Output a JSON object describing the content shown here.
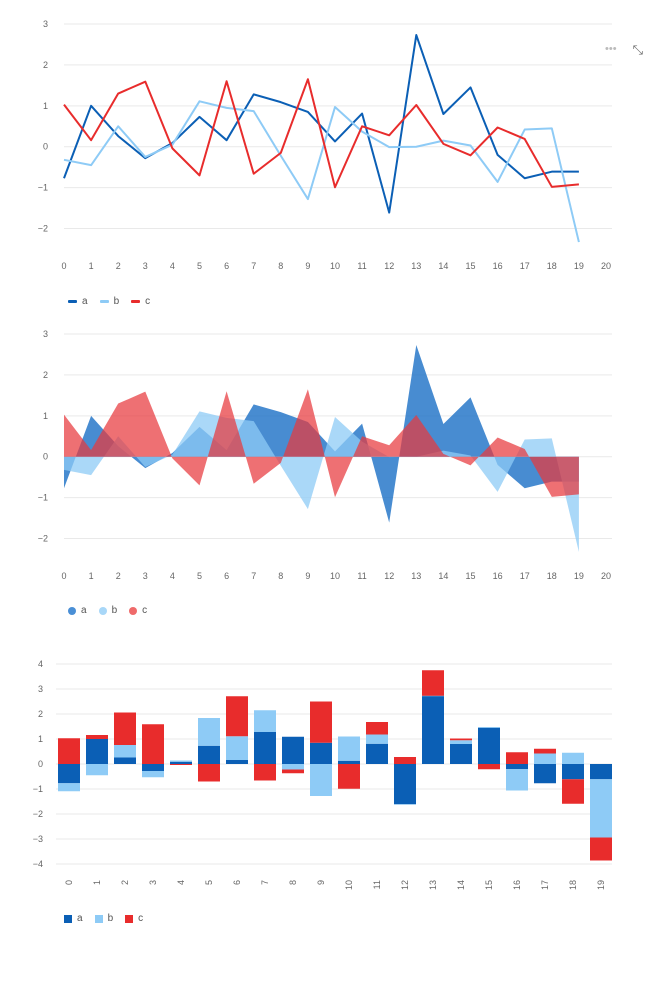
{
  "toolbar": {
    "more_icon": "ellipsis-icon",
    "more_glyph": "•••",
    "expand_icon": "expand-icon",
    "expand_glyph": "⤡"
  },
  "colors": {
    "a": "#0b5fb5",
    "b": "#8ecbf6",
    "c": "#e82c2c",
    "grid": "#e9e9e9",
    "tick": "#666666"
  },
  "legend": [
    {
      "key": "a",
      "label": "a"
    },
    {
      "key": "b",
      "label": "b"
    },
    {
      "key": "c",
      "label": "c"
    }
  ],
  "chart_data": [
    {
      "type": "line",
      "x": [
        0,
        1,
        2,
        3,
        4,
        5,
        6,
        7,
        8,
        9,
        10,
        11,
        12,
        13,
        14,
        15,
        16,
        17,
        18,
        19
      ],
      "series": [
        {
          "name": "a",
          "values": [
            -0.77,
            1.0,
            0.26,
            -0.28,
            0.09,
            0.73,
            0.16,
            1.28,
            1.09,
            0.85,
            0.13,
            0.81,
            -1.61,
            2.73,
            0.8,
            1.45,
            -0.2,
            -0.77,
            -0.61,
            -0.61
          ]
        },
        {
          "name": "b",
          "values": [
            -0.32,
            -0.45,
            0.5,
            -0.25,
            0.05,
            1.11,
            0.95,
            0.87,
            -0.22,
            -1.28,
            0.97,
            0.37,
            -0.01,
            0.0,
            0.15,
            0.03,
            -0.86,
            0.42,
            0.45,
            -2.33
          ]
        },
        {
          "name": "c",
          "values": [
            1.03,
            0.16,
            1.3,
            1.59,
            -0.04,
            -0.7,
            1.6,
            -0.66,
            -0.15,
            1.65,
            -0.99,
            0.5,
            0.28,
            1.02,
            0.07,
            -0.21,
            0.47,
            0.19,
            -0.98,
            -0.92
          ]
        }
      ],
      "xlim": [
        0,
        20
      ],
      "ylim": [
        -2.5,
        3
      ],
      "xticks": [
        "0",
        "1",
        "2",
        "3",
        "4",
        "5",
        "6",
        "7",
        "8",
        "9",
        "10",
        "11",
        "12",
        "13",
        "14",
        "15",
        "16",
        "17",
        "18",
        "19",
        "20"
      ],
      "yticks": [
        "3",
        "2",
        "1",
        "0",
        "−1",
        "−2"
      ],
      "grid": true,
      "legend": "bottom-left"
    },
    {
      "type": "area",
      "x": [
        0,
        1,
        2,
        3,
        4,
        5,
        6,
        7,
        8,
        9,
        10,
        11,
        12,
        13,
        14,
        15,
        16,
        17,
        18,
        19
      ],
      "series": [
        {
          "name": "a",
          "values": [
            -0.77,
            1.0,
            0.26,
            -0.28,
            0.09,
            0.73,
            0.16,
            1.28,
            1.09,
            0.85,
            0.13,
            0.81,
            -1.61,
            2.73,
            0.8,
            1.45,
            -0.2,
            -0.77,
            -0.61,
            -0.61
          ]
        },
        {
          "name": "b",
          "values": [
            -0.32,
            -0.45,
            0.5,
            -0.25,
            0.05,
            1.11,
            0.95,
            0.87,
            -0.22,
            -1.28,
            0.97,
            0.37,
            -0.01,
            0.0,
            0.15,
            0.03,
            -0.86,
            0.42,
            0.45,
            -2.33
          ]
        },
        {
          "name": "c",
          "values": [
            1.03,
            0.16,
            1.3,
            1.59,
            -0.04,
            -0.7,
            1.6,
            -0.66,
            -0.15,
            1.65,
            -0.99,
            0.5,
            0.28,
            1.02,
            0.07,
            -0.21,
            0.47,
            0.19,
            -0.98,
            -0.92
          ]
        }
      ],
      "xlim": [
        0,
        20
      ],
      "ylim": [
        -2.5,
        3
      ],
      "xticks": [
        "0",
        "1",
        "2",
        "3",
        "4",
        "5",
        "6",
        "7",
        "8",
        "9",
        "10",
        "11",
        "12",
        "13",
        "14",
        "15",
        "16",
        "17",
        "18",
        "19",
        "20"
      ],
      "yticks": [
        "3",
        "2",
        "1",
        "0",
        "−1",
        "−2"
      ],
      "grid": true,
      "legend": "bottom-left"
    },
    {
      "type": "bar",
      "stacked": true,
      "categories": [
        "0",
        "1",
        "2",
        "3",
        "4",
        "5",
        "6",
        "7",
        "8",
        "9",
        "10",
        "11",
        "12",
        "13",
        "14",
        "15",
        "16",
        "17",
        "18",
        "19"
      ],
      "series": [
        {
          "name": "a",
          "values": [
            -0.77,
            1.0,
            0.26,
            -0.28,
            0.09,
            0.73,
            0.16,
            1.28,
            1.09,
            0.85,
            0.13,
            0.81,
            -1.61,
            2.73,
            0.8,
            1.45,
            -0.2,
            -0.77,
            -0.61,
            -0.61
          ]
        },
        {
          "name": "b",
          "values": [
            -0.32,
            -0.45,
            0.5,
            -0.25,
            0.05,
            1.11,
            0.95,
            0.87,
            -0.22,
            -1.28,
            0.97,
            0.37,
            -0.01,
            0.0,
            0.15,
            0.03,
            -0.86,
            0.42,
            0.45,
            -2.33
          ]
        },
        {
          "name": "c",
          "values": [
            1.03,
            0.16,
            1.3,
            1.59,
            -0.04,
            -0.7,
            1.6,
            -0.66,
            -0.15,
            1.65,
            -0.99,
            0.5,
            0.28,
            1.02,
            0.07,
            -0.21,
            0.47,
            0.19,
            -0.98,
            -0.92
          ]
        }
      ],
      "ylim": [
        -4,
        4
      ],
      "yticks": [
        "4",
        "3",
        "2",
        "1",
        "0",
        "−1",
        "−2",
        "−3",
        "−4"
      ],
      "grid": true,
      "legend": "bottom-left"
    }
  ]
}
